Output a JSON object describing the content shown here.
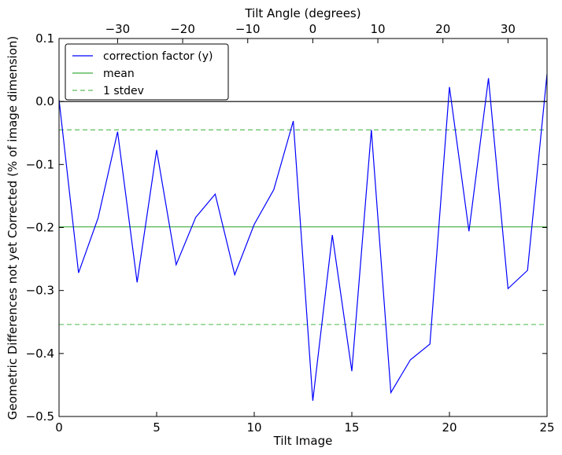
{
  "chart_data": {
    "type": "line",
    "xlabel": "Tilt Image",
    "ylabel": "Geometric Differences not yet Corrected (% of image dimension)",
    "top_xlabel": "Tilt Angle (degrees)",
    "xlim": [
      0,
      25
    ],
    "ylim": [
      -0.5,
      0.1
    ],
    "x_ticks": [
      0,
      5,
      10,
      15,
      20,
      25
    ],
    "x_tick_labels": [
      "0",
      "5",
      "10",
      "15",
      "20",
      "25"
    ],
    "y_ticks": [
      -0.5,
      -0.4,
      -0.3,
      -0.2,
      -0.1,
      0.0,
      0.1
    ],
    "y_tick_labels": [
      "−0.5",
      "−0.4",
      "−0.3",
      "−0.2",
      "−0.1",
      "0.0",
      "0.1"
    ],
    "top_x_range": [
      -39,
      36
    ],
    "top_x_ticks": [
      -30,
      -20,
      -10,
      0,
      10,
      20,
      30
    ],
    "top_x_tick_labels": [
      "−30",
      "−20",
      "−10",
      "0",
      "10",
      "20",
      "30"
    ],
    "grid": false,
    "legend_position": "top-left",
    "series": [
      {
        "name": "correction factor (y)",
        "color": "#0000ff",
        "style": "solid",
        "x": [
          0,
          1,
          2,
          3,
          4,
          5,
          6,
          7,
          8,
          9,
          10,
          11,
          12,
          13,
          14,
          15,
          16,
          17,
          18,
          19,
          20,
          21,
          22,
          23,
          24,
          25
        ],
        "values": [
          0.003,
          -0.272,
          -0.185,
          -0.048,
          -0.287,
          -0.077,
          -0.259,
          -0.184,
          -0.147,
          -0.275,
          -0.195,
          -0.14,
          -0.031,
          -0.475,
          -0.212,
          -0.428,
          -0.045,
          -0.462,
          -0.41,
          -0.385,
          0.023,
          -0.206,
          0.037,
          -0.297,
          -0.268,
          0.044
        ]
      },
      {
        "name": "mean",
        "color": "#3fad3f",
        "style": "solid",
        "x": [
          0,
          25
        ],
        "values": [
          -0.199,
          -0.199
        ]
      },
      {
        "name": "1 stdev",
        "color": "#5cbf5c",
        "style": "dashed",
        "x": [
          0,
          25
        ],
        "values": [
          -0.045,
          -0.045
        ]
      },
      {
        "name": "",
        "color": "#5cbf5c",
        "style": "dashed",
        "x": [
          0,
          25
        ],
        "values": [
          -0.354,
          -0.354
        ]
      }
    ],
    "reference_line": {
      "y": 0.0,
      "color": "#000000"
    }
  }
}
